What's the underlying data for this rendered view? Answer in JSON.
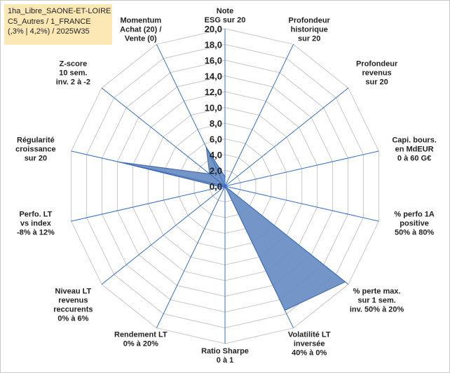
{
  "info_box": {
    "line1": "1ha_Libre_SAONE-ET-LOIRE",
    "line2": "C5_Autres / 1_FRANCE",
    "line3": "(,3% | 4,2%) / 2025W35"
  },
  "chart_data": {
    "type": "radar",
    "title": "",
    "rmin": 0,
    "rmax": 20,
    "tick_step": 2,
    "tick_labels": [
      "0,0",
      "2,0",
      "4,0",
      "6,0",
      "8,0",
      "10,0",
      "12,0",
      "14,0",
      "16,0",
      "18,0",
      "20,0"
    ],
    "grid": true,
    "colors": {
      "series_fill": "#6b8fc4",
      "series_stroke": "#3f63a0",
      "grid": "#c9c9c9",
      "spoke": "#3a6fc2"
    },
    "categories": [
      [
        "Note",
        "ESG sur 20"
      ],
      [
        "Profondeur",
        "historique",
        "sur 20"
      ],
      [
        "Profondeur",
        "revenus",
        "sur 20"
      ],
      [
        "Capi. bours.",
        "en MdEUR",
        "0 à 60 G€"
      ],
      [
        "% perfo 1A",
        "positive",
        "50% à 80%"
      ],
      [
        "% perte max.",
        "sur 1 sem.",
        "inv. 50% à 20%"
      ],
      [
        "Volatilité LT",
        "inversée",
        "40% à 0%"
      ],
      [
        "Ratio Sharpe",
        "0 à 1"
      ],
      [
        "Rendement LT",
        "0% à 20%"
      ],
      [
        "Niveau LT",
        "revenus",
        "reccurents",
        "0% à 6%"
      ],
      [
        "Perfo. LT",
        "vs index",
        "-8% à 12%"
      ],
      [
        "Régularité",
        "croissance",
        "sur 20"
      ],
      [
        "Z-score",
        "10 sem.",
        "inv. 2 à -2"
      ],
      [
        "Momentum",
        "Achat (20) /",
        "Vente (0)"
      ]
    ],
    "series": [
      {
        "values": [
          1.2,
          0.0,
          0.0,
          0.0,
          0.0,
          19.5,
          17.5,
          0.0,
          0.5,
          0.0,
          0.5,
          13.8,
          2.5,
          5.5
        ]
      }
    ]
  }
}
